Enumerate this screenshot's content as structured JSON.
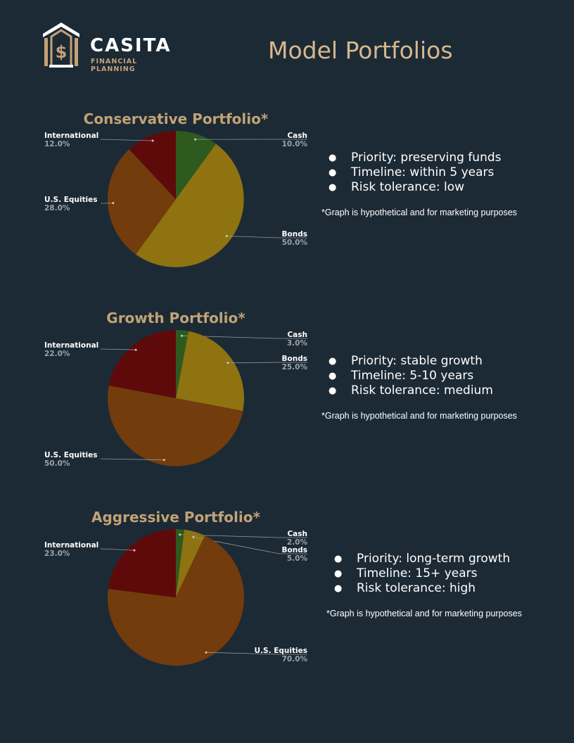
{
  "brand": {
    "name": "CASITA",
    "tagline": "FINANCIAL PLANNING",
    "gold": "#c2a276"
  },
  "page_title": "Model Portfolios",
  "colors": {
    "Cash": "#2e5a1f",
    "Bonds": "#8e7310",
    "U.S. Equities": "#733c0c",
    "International": "#5e0a0a"
  },
  "chart_data": [
    {
      "type": "pie",
      "title": "Conservative Portfolio*",
      "labels": [
        "Cash",
        "Bonds",
        "U.S. Equities",
        "International"
      ],
      "values": [
        10.0,
        50.0,
        28.0,
        12.0
      ],
      "value_labels": [
        "10.0%",
        "50.0%",
        "28.0%",
        "12.0%"
      ]
    },
    {
      "type": "pie",
      "title": "Growth Portfolio*",
      "labels": [
        "Cash",
        "Bonds",
        "U.S. Equities",
        "International"
      ],
      "values": [
        3.0,
        25.0,
        50.0,
        22.0
      ],
      "value_labels": [
        "3.0%",
        "25.0%",
        "50.0%",
        "22.0%"
      ]
    },
    {
      "type": "pie",
      "title": "Aggressive Portfolio*",
      "labels": [
        "Cash",
        "Bonds",
        "U.S. Equities",
        "International"
      ],
      "values": [
        2.0,
        5.0,
        70.0,
        23.0
      ],
      "value_labels": [
        "2.0%",
        "5.0%",
        "70.0%",
        "23.0%"
      ]
    }
  ],
  "portfolios": [
    {
      "bullets": [
        "Priority: preserving funds",
        "Timeline: within 5 years",
        "Risk tolerance: low"
      ],
      "disclaimer": "*Graph is hypothetical and for marketing purposes"
    },
    {
      "bullets": [
        "Priority: stable growth",
        "Timeline: 5-10 years",
        "Risk tolerance: medium"
      ],
      "disclaimer": "*Graph is hypothetical and for marketing purposes"
    },
    {
      "bullets": [
        "Priority: long-term growth",
        "Timeline: 15+ years",
        "Risk tolerance: high"
      ],
      "disclaimer": "*Graph is hypothetical and for marketing purposes"
    }
  ]
}
